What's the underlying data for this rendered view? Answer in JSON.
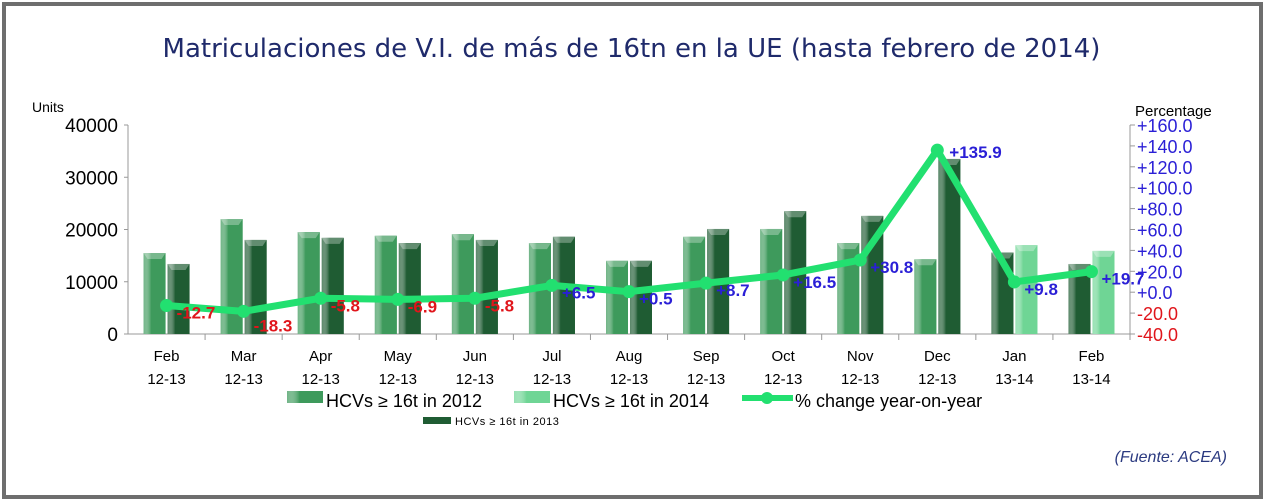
{
  "chart_data": {
    "type": "bar+line",
    "title": "Matriculaciones de V.I. de más de 16tn en la UE (hasta febrero de 2014)",
    "ylabel_left": "Units",
    "ylabel_right": "Percentage",
    "ylim_left": [
      0,
      40000
    ],
    "yticks_left": [
      "0",
      "10000",
      "20000",
      "30000",
      "40000"
    ],
    "ylim_right": [
      -40,
      160
    ],
    "yticks_right": [
      "-40.0",
      "-20.0",
      "+0.0",
      "+20.0",
      "+40.0",
      "+60.0",
      "+80.0",
      "+100.0",
      "+120.0",
      "+140.0",
      "+160.0"
    ],
    "categories": [
      [
        "Feb",
        "12-13"
      ],
      [
        "Mar",
        "12-13"
      ],
      [
        "Apr",
        "12-13"
      ],
      [
        "May",
        "12-13"
      ],
      [
        "Jun",
        "12-13"
      ],
      [
        "Jul",
        "12-13"
      ],
      [
        "Aug",
        "12-13"
      ],
      [
        "Sep",
        "12-13"
      ],
      [
        "Oct",
        "12-13"
      ],
      [
        "Nov",
        "12-13"
      ],
      [
        "Dec",
        "12-13"
      ],
      [
        "Jan",
        "13-14"
      ],
      [
        "Feb",
        "13-14"
      ]
    ],
    "series": [
      {
        "name": "HCVs ≥ 16t in 2012",
        "type": "bar",
        "color": "#3e9a5c",
        "values": [
          15500,
          22000,
          19500,
          18800,
          19100,
          17400,
          14000,
          18600,
          20100,
          17400,
          14300,
          null,
          null
        ]
      },
      {
        "name": "HCVs ≥ 16t in 2013",
        "type": "bar",
        "color": "#1f5c33",
        "values": [
          13400,
          18000,
          18400,
          17400,
          18000,
          18600,
          14000,
          20100,
          23500,
          22600,
          33500,
          15600,
          13400
        ]
      },
      {
        "name": "HCVs ≥ 16t in 2014",
        "type": "bar",
        "color": "#6fd595",
        "values": [
          null,
          null,
          null,
          null,
          null,
          null,
          null,
          null,
          null,
          null,
          null,
          17000,
          15900
        ]
      },
      {
        "name": "% change year-on-year",
        "type": "line",
        "axis": "right",
        "color": "#22e070",
        "values": [
          -12.7,
          -18.3,
          -5.8,
          -6.9,
          -5.8,
          6.5,
          0.5,
          8.7,
          16.5,
          30.8,
          135.9,
          9.8,
          19.7
        ],
        "labels": [
          "-12.7",
          "-18.3",
          "-5.8",
          "-6.9",
          "-5.8",
          "+6.5",
          "+0.5",
          "+8.7",
          "+16.5",
          "+30.8",
          "+135.9",
          "+9.8",
          "+19.7"
        ]
      }
    ],
    "label_colors": {
      "negative": "#e0151b",
      "positive": "#2a1fd6"
    },
    "legend": "bottom",
    "grid": false
  },
  "source": "(Fuente: ACEA)"
}
